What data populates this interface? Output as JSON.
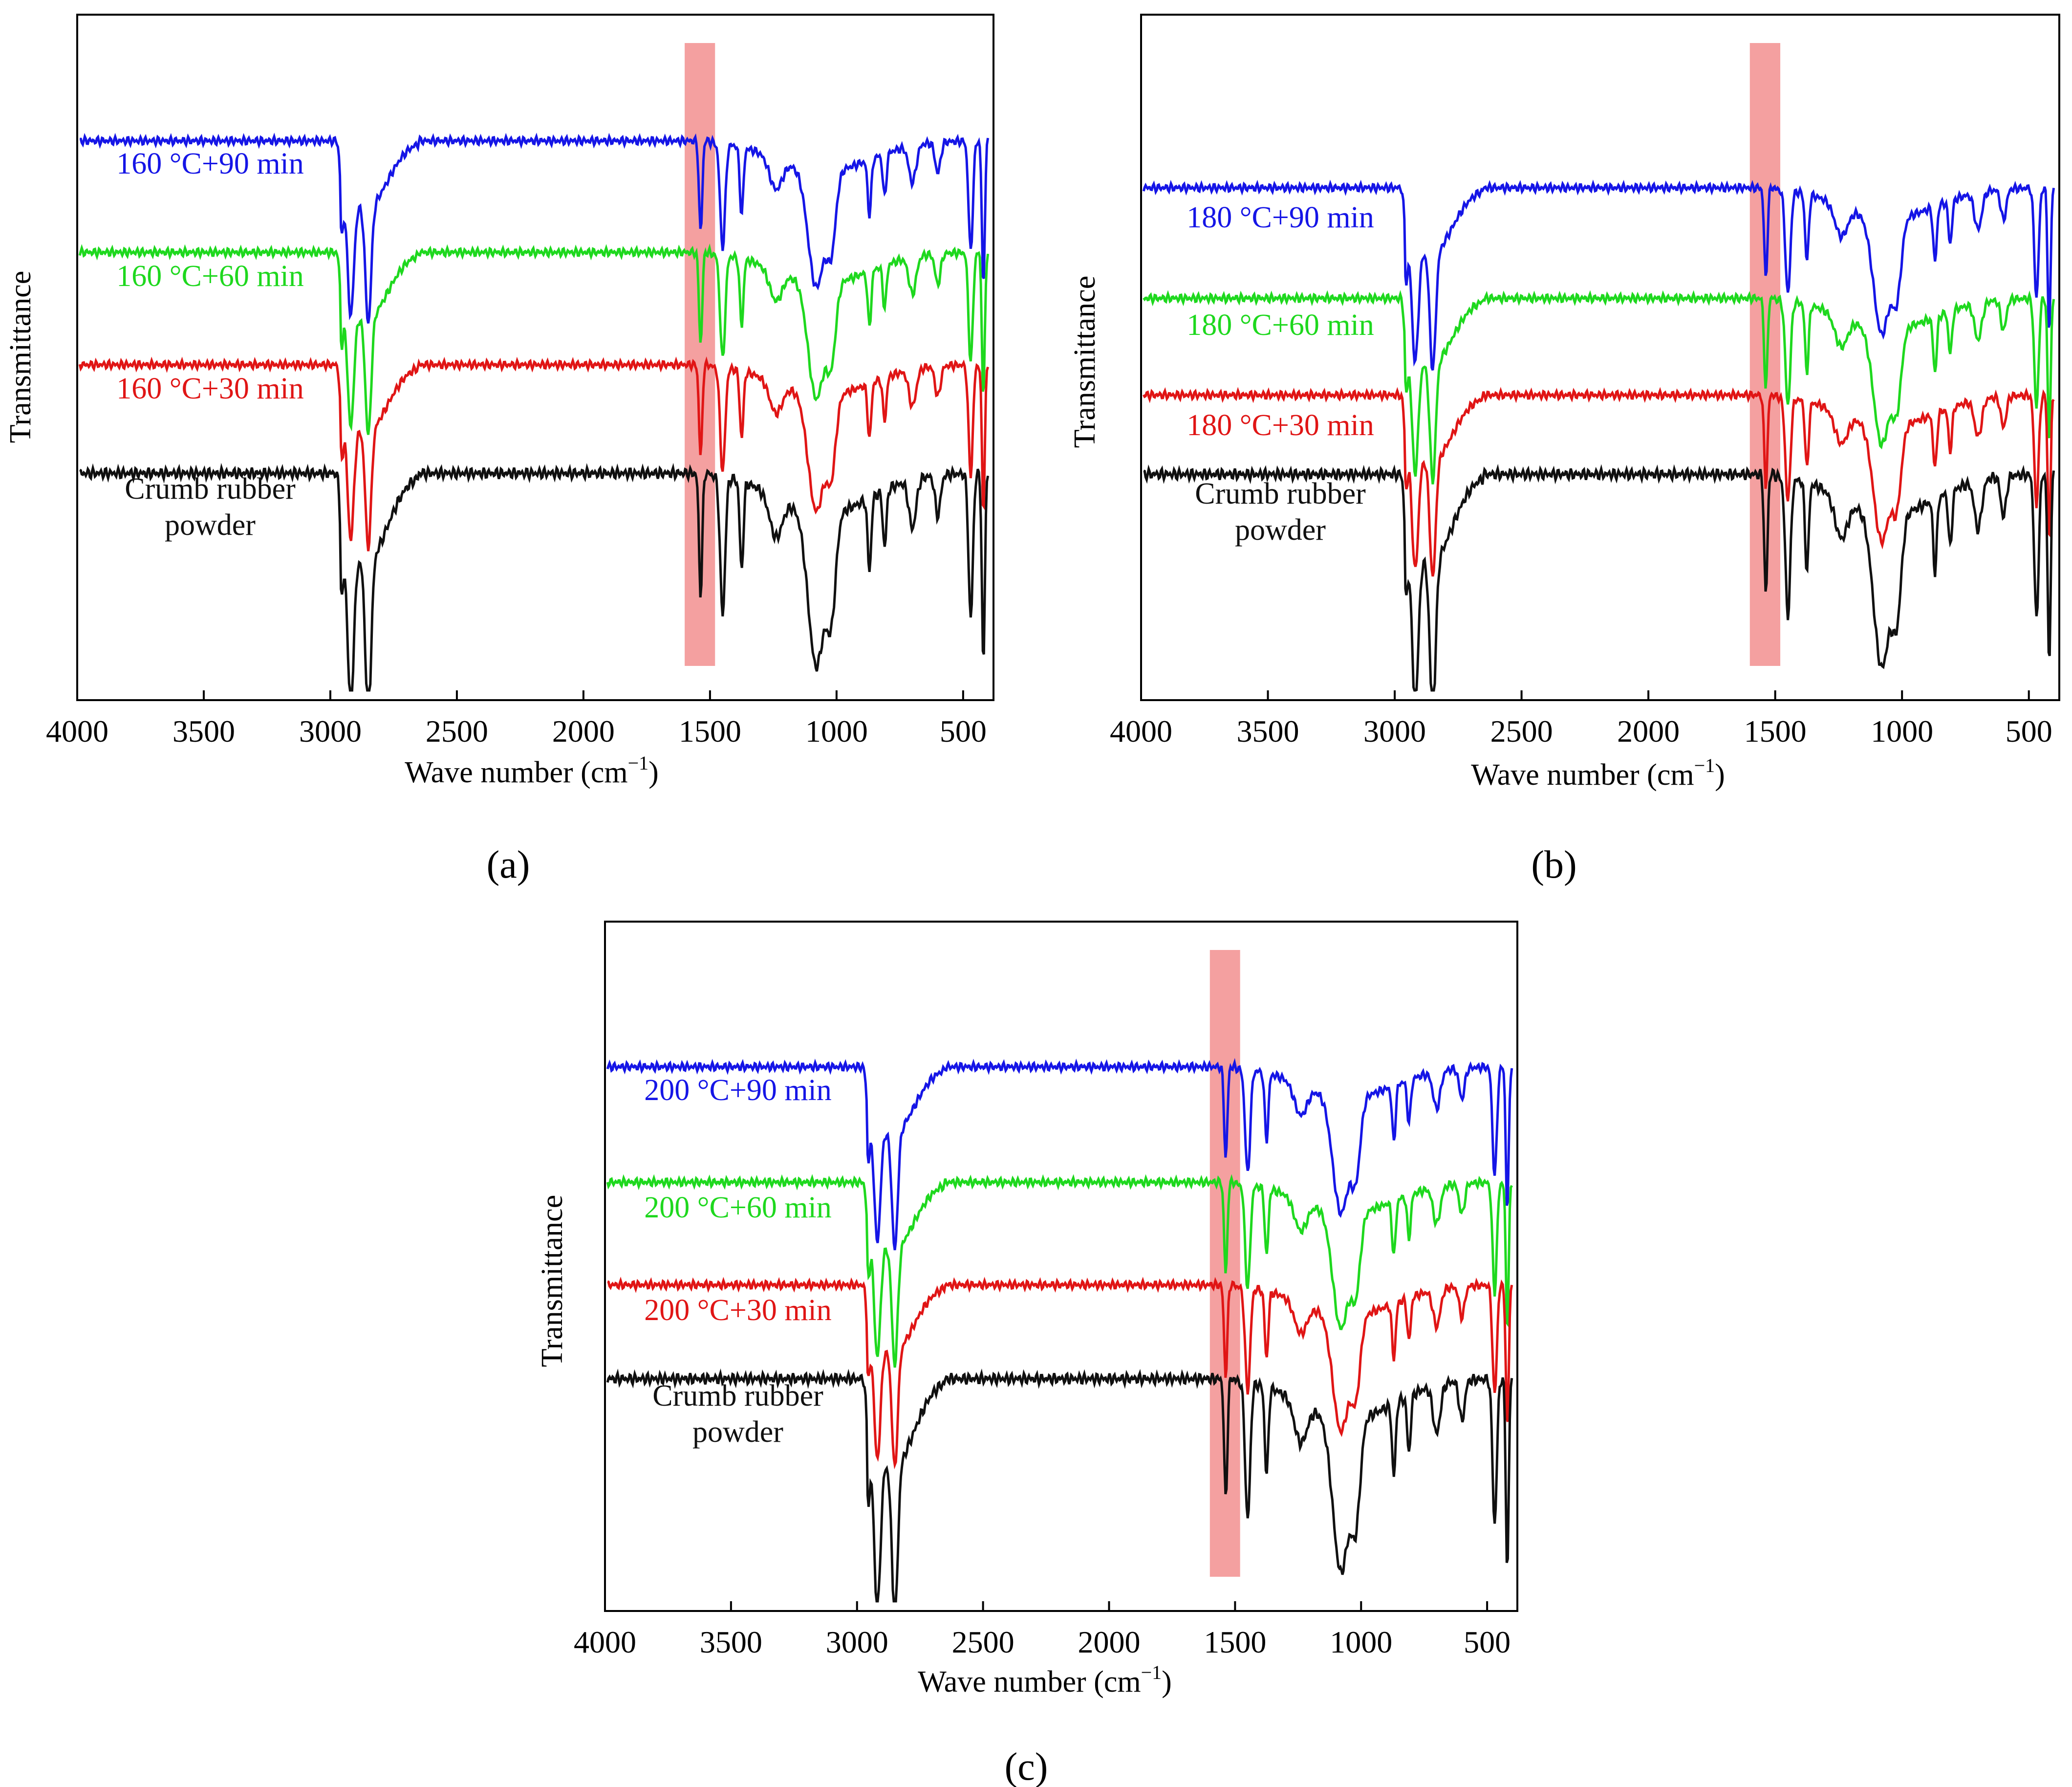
{
  "figure": {
    "xaxis_label": "Wave number (cm",
    "xaxis_unit_superscript": "−1",
    "xaxis_label_close": ")",
    "yaxis_label": "Transmittance",
    "colors": {
      "blue": "#1515e6",
      "green": "#1ed81e",
      "red": "#e01515",
      "black": "#101010",
      "highlight": "#f08080"
    }
  },
  "chart_data": [
    {
      "type": "line",
      "panel_label": "(a)",
      "xlabel": "Wave number (cm−1)",
      "ylabel": "Transmittance",
      "xlim": [
        4000,
        380
      ],
      "xticks": [
        4000,
        3500,
        3000,
        2500,
        2000,
        1500,
        1000,
        500
      ],
      "highlight_band": [
        1600,
        1480
      ],
      "series": [
        {
          "name": "160 °C+90 min",
          "color": "blue",
          "offset": 3
        },
        {
          "name": "160 °C+60 min",
          "color": "green",
          "offset": 2
        },
        {
          "name": "160 °C+30 min",
          "color": "red",
          "offset": 1
        },
        {
          "name": "Crumb rubber powder",
          "name_lines": [
            "Crumb rubber",
            "powder"
          ],
          "color": "black",
          "offset": 0
        }
      ]
    },
    {
      "type": "line",
      "panel_label": "(b)",
      "xlabel": "Wave number (cm−1)",
      "ylabel": "Transmittance",
      "xlim": [
        4000,
        380
      ],
      "xticks": [
        4000,
        3500,
        3000,
        2500,
        2000,
        1500,
        1000,
        500
      ],
      "highlight_band": [
        1600,
        1480
      ],
      "series": [
        {
          "name": "180 °C+90 min",
          "color": "blue",
          "offset": 3
        },
        {
          "name": "180 °C+60 min",
          "color": "green",
          "offset": 2
        },
        {
          "name": "180 °C+30 min",
          "color": "red",
          "offset": 1
        },
        {
          "name": "Crumb rubber powder",
          "name_lines": [
            "Crumb rubber",
            "powder"
          ],
          "color": "black",
          "offset": 0
        }
      ]
    },
    {
      "type": "line",
      "panel_label": "(c)",
      "xlabel": "Wave number (cm−1)",
      "ylabel": "Transmittance",
      "xlim": [
        4000,
        380
      ],
      "xticks": [
        4000,
        3500,
        3000,
        2500,
        2000,
        1500,
        1000,
        500
      ],
      "highlight_band": [
        1600,
        1480
      ],
      "series": [
        {
          "name": "200 °C+90 min",
          "color": "blue",
          "offset": 3
        },
        {
          "name": "200 °C+60 min",
          "color": "green",
          "offset": 2
        },
        {
          "name": "200 °C+30 min",
          "color": "red",
          "offset": 1
        },
        {
          "name": "Crumb rubber powder",
          "name_lines": [
            "Crumb rubber",
            "powder"
          ],
          "color": "black",
          "offset": 0
        }
      ]
    }
  ]
}
